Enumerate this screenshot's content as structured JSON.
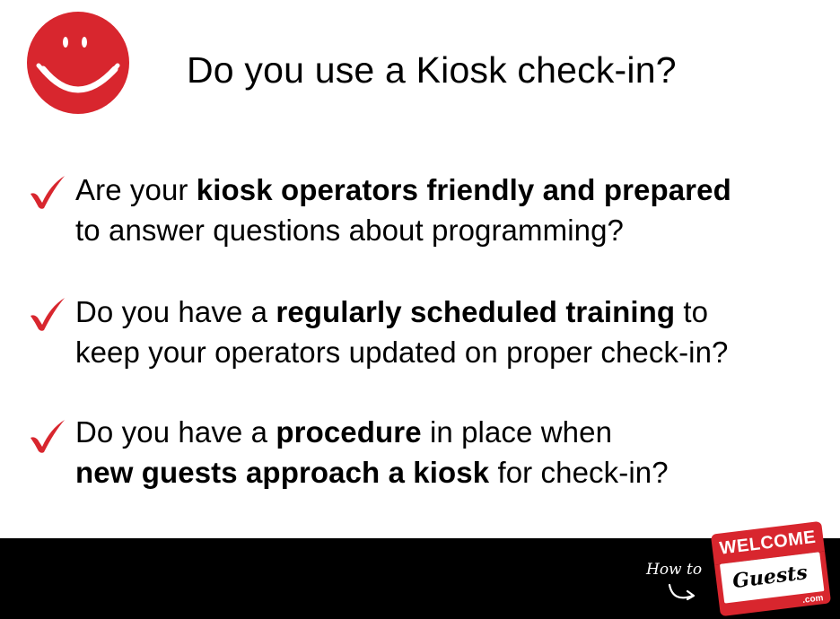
{
  "title": "Do you use a Kiosk check-in?",
  "bullets": [
    {
      "line1": {
        "a": "Are your ",
        "b": "kiosk operators friendly and prepared",
        "c": ""
      },
      "line2": {
        "a": "to answer questions about programming?",
        "b": "",
        "c": ""
      }
    },
    {
      "line1": {
        "a": "Do you have a ",
        "b": "regularly scheduled training",
        "c": " to"
      },
      "line2": {
        "a": "keep your operators updated on proper check-in?",
        "b": "",
        "c": ""
      }
    },
    {
      "line1": {
        "a": "Do you have a ",
        "b": "procedure",
        "c": " in place when"
      },
      "line2": {
        "a": "",
        "b": "new guests approach a kiosk",
        "c": " for check-in?"
      }
    }
  ],
  "footer": {
    "howto": "How to",
    "badge_top": "WELCOME",
    "badge_name": "Guests",
    "badge_domain": ".com"
  },
  "colors": {
    "accent_red": "#d8262e",
    "footer_bg": "#000000"
  },
  "icons": [
    "smiley-face-icon",
    "checkmark-icon"
  ]
}
